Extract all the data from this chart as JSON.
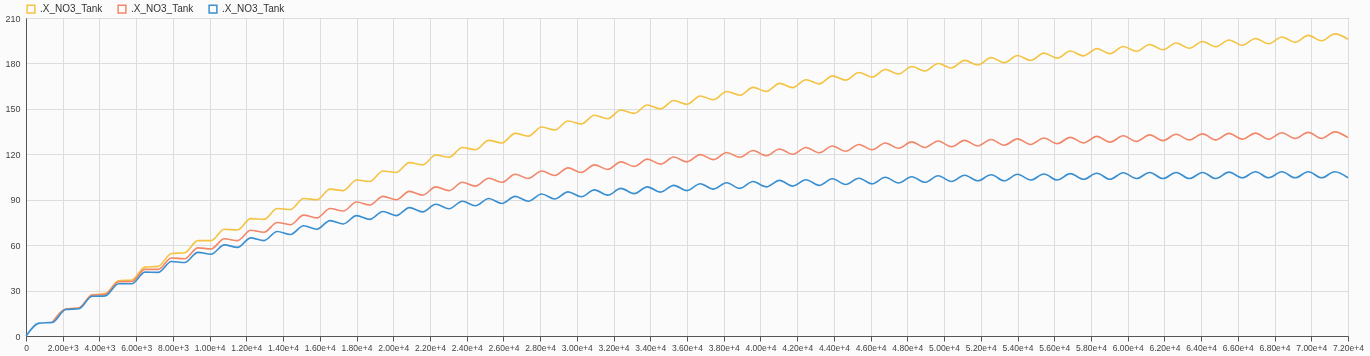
{
  "chart_data": {
    "type": "line",
    "x": [
      0,
      720,
      1440,
      2160,
      2880,
      3600,
      4320,
      5040,
      5760,
      6480,
      7200,
      7920,
      8640,
      9360,
      10080,
      10800,
      11520,
      12240,
      12960,
      13680,
      14400,
      15120,
      15840,
      16560,
      17280,
      18000,
      18720,
      19440,
      20160,
      20880,
      21600,
      22320,
      23040,
      23760,
      24480,
      25200,
      25920,
      26640,
      27360,
      28080,
      28800,
      29520,
      30240,
      30960,
      31680,
      32400,
      33120,
      33840,
      34560,
      35280,
      36000,
      36720,
      37440,
      38160,
      38880,
      39600,
      40320,
      41040,
      41760,
      42480,
      43200,
      43920,
      44640,
      45360,
      46080,
      46800,
      47520,
      48240,
      48960,
      49680,
      50400,
      51120,
      51840,
      52560,
      53280,
      54000,
      54720,
      55440,
      56160,
      56880,
      57600,
      58320,
      59040,
      59760,
      60480,
      61200,
      61920,
      62640,
      63360,
      64080,
      64800,
      65520,
      66240,
      66960,
      67680,
      68400,
      69120,
      69840,
      70560,
      71280,
      72000
    ],
    "series": [
      {
        "name": ".X_NO3_Tank",
        "color": "#f5c342",
        "values": [
          null,
          null,
          9,
          17.8,
          18.5,
          27.2,
          28,
          36.5,
          37,
          45.5,
          46,
          54.5,
          55,
          63,
          63,
          70.5,
          70,
          77.5,
          77,
          84.2,
          83.5,
          90.8,
          90,
          97,
          96,
          103,
          102,
          109,
          108,
          114.5,
          113,
          119.5,
          118,
          124.5,
          123,
          129.2,
          127.5,
          133.8,
          132,
          138,
          136,
          142,
          140,
          145.8,
          143.5,
          149.2,
          147,
          152.5,
          150,
          155.5,
          153,
          158.5,
          156,
          161.5,
          159,
          164.2,
          161.5,
          166.8,
          164,
          169.2,
          166.5,
          171.8,
          169,
          174,
          171,
          176,
          173,
          178,
          175,
          180,
          177,
          182,
          179,
          183.8,
          180.5,
          185.2,
          182,
          186.8,
          183.5,
          188.2,
          185,
          189.8,
          186.5,
          191.2,
          188,
          192.5,
          189,
          193.5,
          190,
          194.5,
          191,
          195.5,
          192,
          196.5,
          193,
          197.5,
          194,
          198.5,
          195,
          199.5,
          196
        ]
      },
      {
        "name": ".X_NO3_Tank",
        "color": "#f2876a",
        "values": [
          null,
          null,
          9,
          17.8,
          18.5,
          27,
          27.5,
          35.8,
          36,
          44,
          44,
          51.5,
          51,
          58.2,
          57.5,
          64.2,
          63,
          69.8,
          68.5,
          75,
          73.5,
          79.8,
          78,
          84.2,
          82.5,
          88.5,
          86.5,
          92.2,
          90,
          95.5,
          93,
          98.5,
          96,
          101.5,
          99,
          104.2,
          101.5,
          106.8,
          104,
          109,
          106,
          111,
          108,
          113,
          110,
          115,
          112,
          116.8,
          113.5,
          118.2,
          115,
          119.8,
          116.5,
          121.2,
          118,
          122.5,
          119,
          123.5,
          120,
          124.5,
          121,
          125.5,
          122,
          126.5,
          123,
          127.5,
          124,
          128.2,
          124.5,
          128.8,
          125,
          129.2,
          125.5,
          129.8,
          126,
          130.2,
          126.5,
          130.8,
          127,
          131.2,
          127.5,
          131.8,
          128,
          132.2,
          128.5,
          132.8,
          129,
          133.2,
          129.5,
          133.5,
          129.5,
          133.8,
          130,
          134,
          130,
          134.2,
          130.5,
          134.5,
          130.5,
          134.8,
          131
        ]
      },
      {
        "name": ".X_NO3_Tank",
        "color": "#3a8fd0",
        "values": [
          0,
          8.5,
          9,
          17.5,
          18,
          26.2,
          26.5,
          34.5,
          34.5,
          42.2,
          42,
          49.2,
          48.5,
          55.2,
          54,
          60.2,
          58.5,
          64.8,
          63,
          69,
          67,
          72.8,
          70.5,
          76.2,
          74,
          79.5,
          77,
          82.2,
          79.5,
          84.8,
          82,
          87,
          84,
          89,
          86,
          90.8,
          87.5,
          92.2,
          89,
          93.8,
          90.5,
          95.2,
          92,
          96.5,
          93,
          97.5,
          94,
          98.5,
          95,
          99.5,
          96,
          100.5,
          97,
          101.2,
          97.5,
          102,
          98.5,
          102.8,
          99,
          103.2,
          99.5,
          103.8,
          100,
          104.2,
          100.5,
          104.8,
          101,
          105.2,
          101.5,
          105.8,
          102,
          106.2,
          102.5,
          106.5,
          102.5,
          106.8,
          103,
          107,
          103,
          107.2,
          103.5,
          107.5,
          103.5,
          107.8,
          104,
          108,
          104,
          108,
          104,
          108,
          104,
          108.2,
          104.5,
          108.5,
          104.5,
          108.5,
          104.5,
          108.5,
          104.5,
          108.5,
          104.5
        ]
      }
    ],
    "xlim": [
      0,
      72000
    ],
    "xticks": [
      0,
      {
        "value": 2000,
        "label": "2.00e+3"
      },
      {
        "value": 4000,
        "label": "4.00e+3"
      },
      {
        "value": 6000,
        "label": "6.00e+3"
      },
      {
        "value": 8000,
        "label": "8.00e+3"
      },
      {
        "value": 10000,
        "label": "1.00e+4"
      },
      {
        "value": 12000,
        "label": "1.20e+4"
      },
      {
        "value": 14000,
        "label": "1.40e+4"
      },
      {
        "value": 16000,
        "label": "1.60e+4"
      },
      {
        "value": 18000,
        "label": "1.80e+4"
      },
      {
        "value": 20000,
        "label": "2.00e+4"
      },
      {
        "value": 22000,
        "label": "2.20e+4"
      },
      {
        "value": 24000,
        "label": "2.40e+4"
      },
      {
        "value": 26000,
        "label": "2.60e+4"
      },
      {
        "value": 28000,
        "label": "2.80e+4"
      },
      {
        "value": 30000,
        "label": "3.00e+4"
      },
      {
        "value": 32000,
        "label": "3.20e+4"
      },
      {
        "value": 34000,
        "label": "3.40e+4"
      },
      {
        "value": 36000,
        "label": "3.60e+4"
      },
      {
        "value": 38000,
        "label": "3.80e+4"
      },
      {
        "value": 40000,
        "label": "4.00e+4"
      },
      {
        "value": 42000,
        "label": "4.20e+4"
      },
      {
        "value": 44000,
        "label": "4.40e+4"
      },
      {
        "value": 46000,
        "label": "4.60e+4"
      },
      {
        "value": 48000,
        "label": "4.80e+4"
      },
      {
        "value": 50000,
        "label": "5.00e+4"
      },
      {
        "value": 52000,
        "label": "5.20e+4"
      },
      {
        "value": 54000,
        "label": "5.40e+4"
      },
      {
        "value": 56000,
        "label": "5.60e+4"
      },
      {
        "value": 58000,
        "label": "5.80e+4"
      },
      {
        "value": 60000,
        "label": "6.00e+4"
      },
      {
        "value": 62000,
        "label": "6.20e+4"
      },
      {
        "value": 64000,
        "label": "6.40e+4"
      },
      {
        "value": 66000,
        "label": "6.60e+4"
      },
      {
        "value": 68000,
        "label": "6.80e+4"
      },
      {
        "value": 70000,
        "label": "7.00e+4"
      },
      {
        "value": 72000,
        "label": "7.20e+4"
      }
    ],
    "ylim": [
      0,
      210
    ],
    "yticks": [
      0,
      30,
      60,
      90,
      120,
      150,
      180,
      210
    ],
    "grid": true,
    "legend": "top left",
    "marker": "none",
    "line_style": "solid"
  }
}
